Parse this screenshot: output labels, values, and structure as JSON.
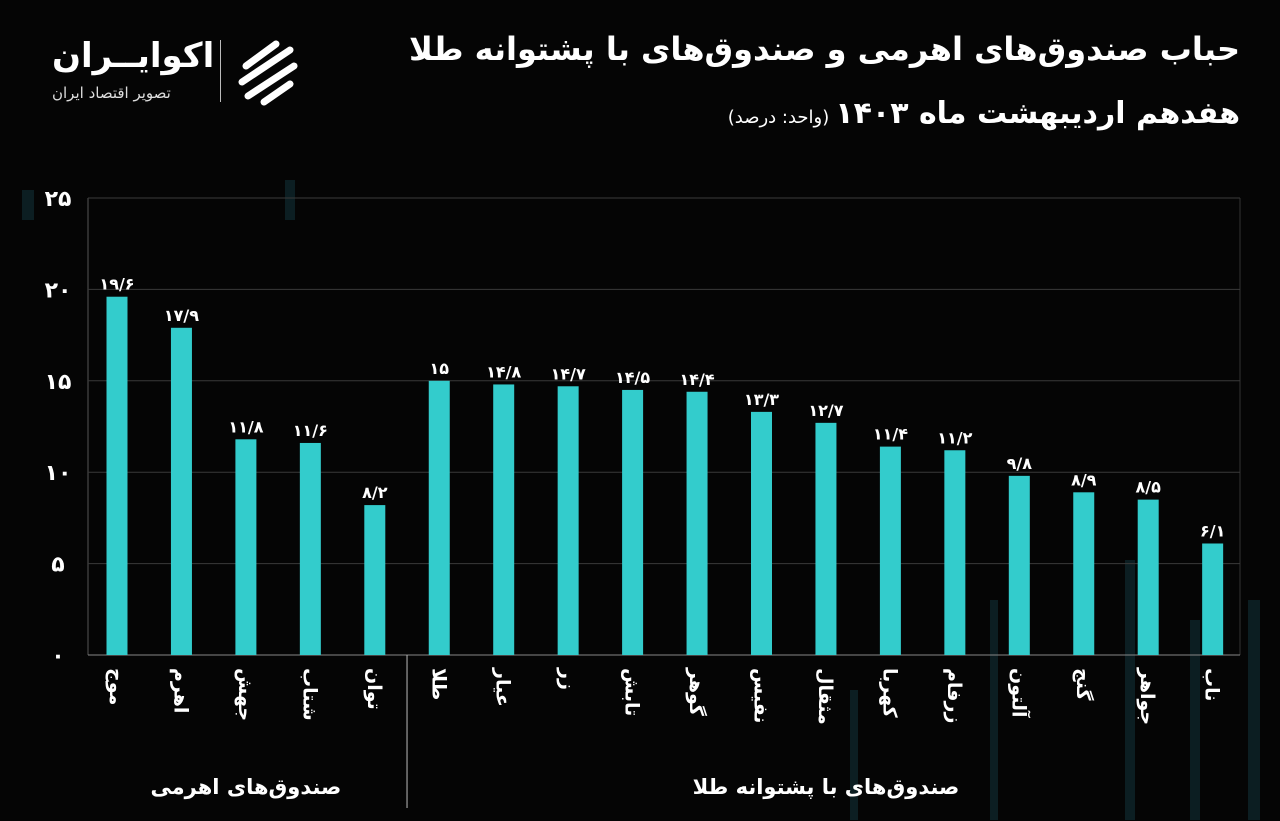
{
  "header": {
    "title": "حباب صندوق‌های اهرمی و صندوق‌های با پشتوانه طلا",
    "subtitle": "هفدهم اردیبهشت ماه ۱۴۰۳",
    "unit": "(واحد: درصد)"
  },
  "logo": {
    "name": "اکوایــران",
    "tagline": "تصویر اقتصاد ایران",
    "icon": "striped-circle-logo"
  },
  "chart_data": {
    "type": "bar",
    "categories": [
      "موج",
      "اهرم",
      "جهش",
      "شتاب",
      "توان",
      "طلا",
      "عیار",
      "زر",
      "تابش",
      "گوهر",
      "نفیس",
      "مثقال",
      "کهربا",
      "زرفام",
      "آلتون",
      "گنج",
      "جواهر",
      "ناب"
    ],
    "values": [
      19.6,
      17.9,
      11.8,
      11.6,
      8.2,
      15,
      14.8,
      14.7,
      14.5,
      14.4,
      13.3,
      12.7,
      11.4,
      11.2,
      9.8,
      8.9,
      8.5,
      6.1
    ],
    "data_labels": [
      "۱۹/۶",
      "۱۷/۹",
      "۱۱/۸",
      "۱۱/۶",
      "۸/۲",
      "۱۵",
      "۱۴/۸",
      "۱۴/۷",
      "۱۴/۵",
      "۱۴/۴",
      "۱۳/۳",
      "۱۲/۷",
      "۱۱/۴",
      "۱۱/۲",
      "۹/۸",
      "۸/۹",
      "۸/۵",
      "۶/۱"
    ],
    "groups": [
      {
        "label": "صندوق‌های اهرمی",
        "count": 5
      },
      {
        "label": "صندوق‌های با پشتوانه طلا",
        "count": 13
      }
    ],
    "ylim": [
      0,
      25
    ],
    "yticks": [
      0,
      5,
      10,
      15,
      20,
      25
    ],
    "ytick_labels": [
      "۰",
      "۵",
      "۱۰",
      "۱۵",
      "۲۰",
      "۲۵"
    ],
    "grid": true,
    "bar_color": "#33cccc",
    "background": "#050505"
  }
}
